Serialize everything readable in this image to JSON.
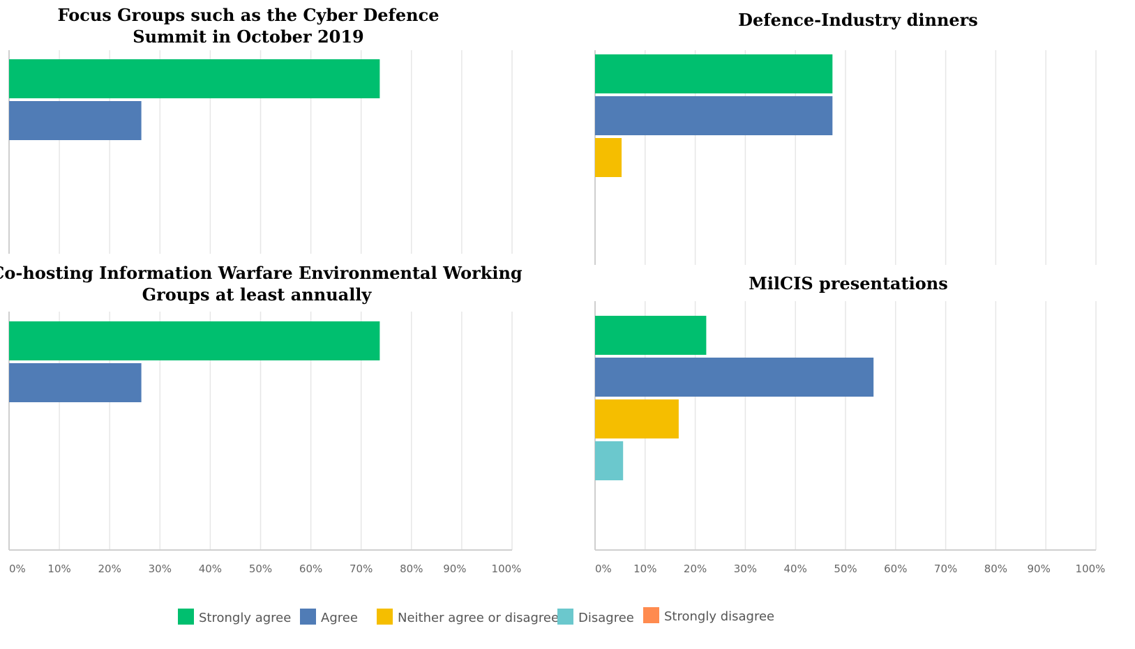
{
  "legend": [
    {
      "label": "Strongly agree",
      "color": "#00BF6F"
    },
    {
      "label": "Agree",
      "color": "#507CB6"
    },
    {
      "label": "Neither agree or disagree",
      "color": "#F5BE00"
    },
    {
      "label": "Disagree",
      "color": "#6BC8CD"
    },
    {
      "label": "Strongly disagree",
      "color": "#FF8B4F"
    }
  ],
  "axis_ticks": [
    "0%",
    "10%",
    "20%",
    "30%",
    "40%",
    "50%",
    "60%",
    "70%",
    "80%",
    "90%",
    "100%"
  ],
  "chart_data": [
    {
      "type": "bar",
      "orientation": "horizontal",
      "title_lines": [
        "Focus Groups such as the Cyber Defence",
        "Summit in October 2019"
      ],
      "categories": [
        "Strongly agree",
        "Agree",
        "Neither agree or disagree",
        "Disagree",
        "Strongly disagree"
      ],
      "values": [
        73.7,
        26.3,
        0,
        0,
        0
      ],
      "xlim": [
        0,
        100
      ],
      "grid": true
    },
    {
      "type": "bar",
      "orientation": "horizontal",
      "title_lines": [
        "Defence-Industry dinners"
      ],
      "categories": [
        "Strongly agree",
        "Agree",
        "Neither agree or disagree",
        "Disagree",
        "Strongly disagree"
      ],
      "values": [
        47.4,
        47.4,
        5.3,
        0,
        0
      ],
      "xlim": [
        0,
        100
      ],
      "grid": true
    },
    {
      "type": "bar",
      "orientation": "horizontal",
      "title_lines": [
        "Co-hosting Information Warfare Environmental Working",
        "Groups at least annually"
      ],
      "categories": [
        "Strongly agree",
        "Agree",
        "Neither agree or disagree",
        "Disagree",
        "Strongly disagree"
      ],
      "values": [
        73.7,
        26.3,
        0,
        0,
        0
      ],
      "xlim": [
        0,
        100
      ],
      "grid": true
    },
    {
      "type": "bar",
      "orientation": "horizontal",
      "title_lines": [
        "MilCIS presentations"
      ],
      "categories": [
        "Strongly agree",
        "Agree",
        "Neither agree or disagree",
        "Disagree",
        "Strongly disagree"
      ],
      "values": [
        22.2,
        55.6,
        16.7,
        5.6,
        0
      ],
      "xlim": [
        0,
        100
      ],
      "grid": true
    }
  ]
}
